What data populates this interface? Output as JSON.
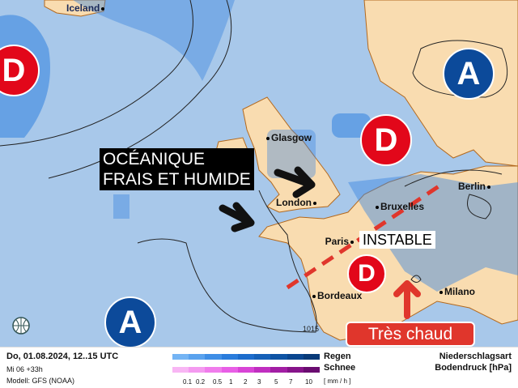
{
  "map": {
    "colors": {
      "sea": "#a8c8ea",
      "land": "#f9dcb0",
      "low": "#e2071a",
      "high": "#0c4a9a",
      "rain": "#3a86e0",
      "hot": "#e0362c"
    },
    "places": {
      "iceland": "Iceland",
      "glasgow": "Glasgow",
      "london": "London",
      "bruxelles": "Bruxelles",
      "berlin": "Berlin",
      "paris": "Paris",
      "bordeaux": "Bordeaux",
      "milano": "Milano"
    },
    "isobar_label": "1015",
    "pressure_centers": [
      {
        "type": "low",
        "letter": "D"
      },
      {
        "type": "high",
        "letter": "A"
      },
      {
        "type": "low",
        "letter": "D"
      },
      {
        "type": "low",
        "letter": "D"
      },
      {
        "type": "high",
        "letter": "A"
      }
    ],
    "annotations": {
      "oceanic_line1": "OCÉANIQUE",
      "oceanic_line2": "FRAIS ET HUMIDE",
      "unstable": "INSTABLE",
      "hot": "Très chaud"
    },
    "compass_icon": "globe-icon"
  },
  "footer": {
    "date": "Do, 01.08.2024, 12..15 UTC",
    "run": "Mi 06 +33h",
    "model": "Modell: GFS (NOAA)",
    "rain_label": "Regen",
    "snow_label": "Schnee",
    "unit": "[ mm / h ]",
    "scale": [
      "0.1",
      "0.2",
      "0.5",
      "1",
      "2",
      "3",
      "5",
      "7",
      "10"
    ],
    "rain_colors": [
      "#74b4f4",
      "#5aa2ee",
      "#3f8ee6",
      "#2a7cdc",
      "#1c6ccc",
      "#1560b8",
      "#0e53a4",
      "#0a4690",
      "#083a78"
    ],
    "snow_colors": [
      "#f8b6f4",
      "#f49af0",
      "#f07cec",
      "#e85ee6",
      "#d844d6",
      "#c02ec0",
      "#a21ea4",
      "#86148a",
      "#6a0c70"
    ],
    "type_title": "Niederschlagsart",
    "pressure_title": "Bodendruck [hPa]"
  }
}
